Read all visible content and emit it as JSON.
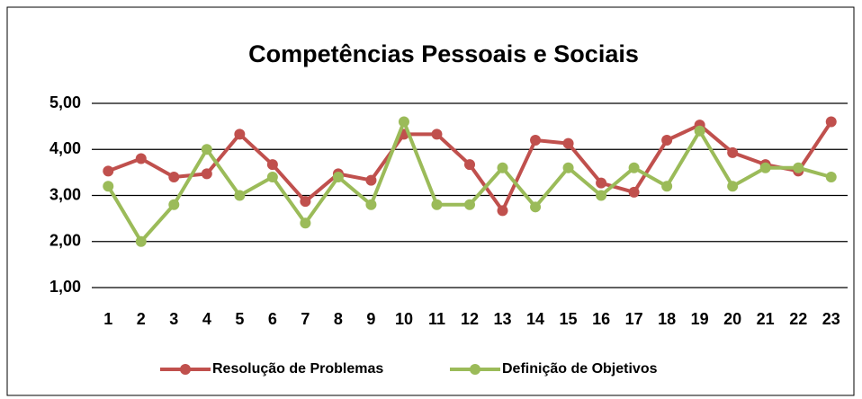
{
  "chart_data": {
    "type": "line",
    "title": "Competências Pessoais e Sociais",
    "categories": [
      "1",
      "2",
      "3",
      "4",
      "5",
      "6",
      "7",
      "8",
      "9",
      "10",
      "11",
      "12",
      "13",
      "14",
      "15",
      "16",
      "17",
      "18",
      "19",
      "20",
      "21",
      "22",
      "23"
    ],
    "series": [
      {
        "name": "Resolução de Problemas",
        "color": "#c0504d",
        "values": [
          3.53,
          3.8,
          3.4,
          3.47,
          4.33,
          3.67,
          2.87,
          3.47,
          3.33,
          4.33,
          4.33,
          3.67,
          2.67,
          4.2,
          4.13,
          3.27,
          3.07,
          4.2,
          4.53,
          3.93,
          3.67,
          3.53,
          4.6
        ]
      },
      {
        "name": "Definição de Objetivos",
        "color": "#9bbb59",
        "values": [
          3.2,
          2.0,
          2.8,
          4.0,
          3.0,
          3.4,
          2.4,
          3.4,
          2.8,
          4.6,
          2.8,
          2.8,
          3.6,
          2.75,
          3.6,
          3.0,
          3.6,
          3.2,
          4.4,
          3.2,
          3.6,
          3.6,
          3.4
        ]
      }
    ],
    "ylim": [
      1,
      5
    ],
    "yticks": [
      {
        "value": 1,
        "label": "1,00"
      },
      {
        "value": 2,
        "label": "2,00"
      },
      {
        "value": 3,
        "label": "3,00"
      },
      {
        "value": 4,
        "label": "4,00"
      },
      {
        "value": 5,
        "label": "5,00"
      }
    ],
    "grid": true,
    "legend": "bottom"
  }
}
